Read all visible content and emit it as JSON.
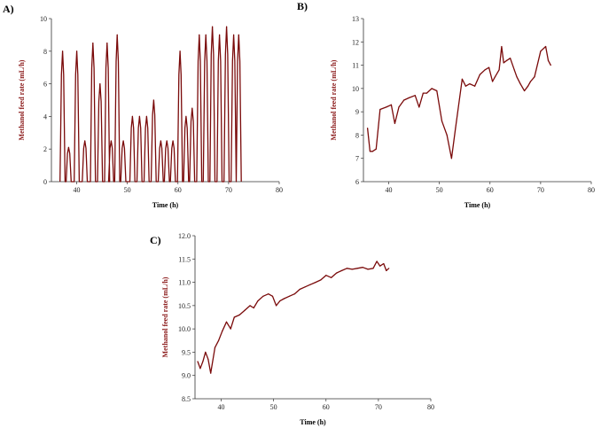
{
  "chart_data": [
    {
      "panel": "A)",
      "type": "line",
      "xlabel": "Time (h)",
      "ylabel": "Methanol feed rate (mL/h)",
      "xlim": [
        35,
        80
      ],
      "ylim": [
        0,
        10
      ],
      "xticks": [
        40,
        50,
        60,
        70,
        80
      ],
      "yticks": [
        0,
        2,
        4,
        6,
        8,
        10
      ],
      "tick_decimals": 0,
      "grid": false,
      "series": [
        {
          "color": "#7a0a0a",
          "pulse_peaks": [
            [
              37.2,
              8.0
            ],
            [
              38.4,
              2.1
            ],
            [
              40.0,
              8.0
            ],
            [
              41.6,
              2.5
            ],
            [
              43.2,
              8.5
            ],
            [
              44.6,
              6.0
            ],
            [
              46.0,
              8.5
            ],
            [
              46.8,
              2.5
            ],
            [
              48.0,
              9.0
            ],
            [
              49.2,
              2.5
            ],
            [
              51.0,
              4.0
            ],
            [
              52.4,
              4.0
            ],
            [
              53.8,
              4.0
            ],
            [
              55.2,
              5.0
            ],
            [
              56.6,
              2.5
            ],
            [
              57.8,
              2.5
            ],
            [
              59.0,
              2.5
            ],
            [
              60.4,
              8.0
            ],
            [
              61.6,
              4.0
            ],
            [
              62.8,
              4.5
            ],
            [
              64.2,
              9.0
            ],
            [
              65.5,
              9.0
            ],
            [
              66.8,
              9.5
            ],
            [
              68.2,
              9.0
            ],
            [
              69.6,
              9.5
            ],
            [
              71.0,
              9.0
            ],
            [
              72.0,
              9.0
            ]
          ]
        }
      ]
    },
    {
      "panel": "B)",
      "type": "line",
      "xlabel": "Time (h)",
      "ylabel": "Methanol feed rate (mL/h)",
      "xlim": [
        35,
        80
      ],
      "ylim": [
        6,
        13
      ],
      "xticks": [
        40,
        50,
        60,
        70,
        80
      ],
      "yticks": [
        6,
        7,
        8,
        9,
        10,
        11,
        12,
        13
      ],
      "tick_decimals": 0,
      "grid": false,
      "series": [
        {
          "color": "#7a0a0a",
          "x": [
            35.8,
            36.3,
            36.8,
            37.5,
            38.3,
            39.5,
            40.5,
            41.2,
            42.0,
            43.0,
            44.0,
            45.2,
            46.0,
            46.8,
            47.5,
            48.5,
            49.5,
            50.5,
            51.5,
            52.4,
            53.2,
            54.5,
            55.2,
            56.0,
            57.0,
            58.0,
            59.0,
            59.8,
            60.5,
            61.0,
            61.8,
            62.3,
            62.7,
            63.3,
            64.0,
            64.8,
            65.3,
            66.0,
            66.8,
            67.5,
            68.0,
            68.8,
            70.0,
            71.0,
            71.5,
            72.0
          ],
          "y": [
            8.3,
            7.3,
            7.3,
            7.4,
            9.1,
            9.2,
            9.3,
            8.5,
            9.2,
            9.5,
            9.6,
            9.7,
            9.2,
            9.8,
            9.8,
            10.0,
            9.9,
            8.6,
            8.0,
            7.0,
            8.3,
            10.4,
            10.1,
            10.2,
            10.1,
            10.6,
            10.8,
            10.9,
            10.3,
            10.5,
            10.8,
            11.8,
            11.1,
            11.2,
            11.3,
            10.8,
            10.5,
            10.2,
            9.9,
            10.1,
            10.3,
            10.5,
            11.6,
            11.8,
            11.2,
            11.0
          ]
        }
      ]
    },
    {
      "panel": "C)",
      "type": "line",
      "xlabel": "Time (h)",
      "ylabel": "Methanol feed rate (mL/h)",
      "xlim": [
        35,
        80
      ],
      "ylim": [
        8.5,
        12.0
      ],
      "xticks": [
        40,
        50,
        60,
        70,
        80
      ],
      "yticks": [
        8.5,
        9.0,
        9.5,
        10.0,
        10.5,
        11.0,
        11.5,
        12.0
      ],
      "tick_decimals": 1,
      "grid": false,
      "series": [
        {
          "color": "#7a0a0a",
          "x": [
            35.5,
            36.0,
            36.5,
            37.0,
            37.5,
            38.0,
            38.8,
            39.5,
            40.2,
            41.0,
            41.8,
            42.5,
            43.5,
            44.5,
            45.5,
            46.2,
            47.0,
            48.0,
            49.0,
            49.8,
            50.5,
            51.2,
            52.0,
            53.0,
            54.0,
            55.0,
            56.0,
            57.0,
            58.0,
            59.0,
            60.0,
            61.0,
            62.0,
            63.0,
            64.0,
            65.0,
            66.0,
            67.0,
            68.0,
            69.0,
            69.7,
            70.3,
            71.0,
            71.5,
            72.0
          ],
          "y": [
            9.3,
            9.15,
            9.3,
            9.5,
            9.35,
            9.05,
            9.6,
            9.75,
            9.95,
            10.15,
            10.0,
            10.25,
            10.3,
            10.4,
            10.5,
            10.45,
            10.6,
            10.7,
            10.75,
            10.7,
            10.5,
            10.6,
            10.65,
            10.7,
            10.75,
            10.85,
            10.9,
            10.95,
            11.0,
            11.05,
            11.15,
            11.1,
            11.2,
            11.25,
            11.3,
            11.28,
            11.3,
            11.32,
            11.28,
            11.3,
            11.45,
            11.35,
            11.4,
            11.25,
            11.3
          ]
        }
      ]
    }
  ]
}
